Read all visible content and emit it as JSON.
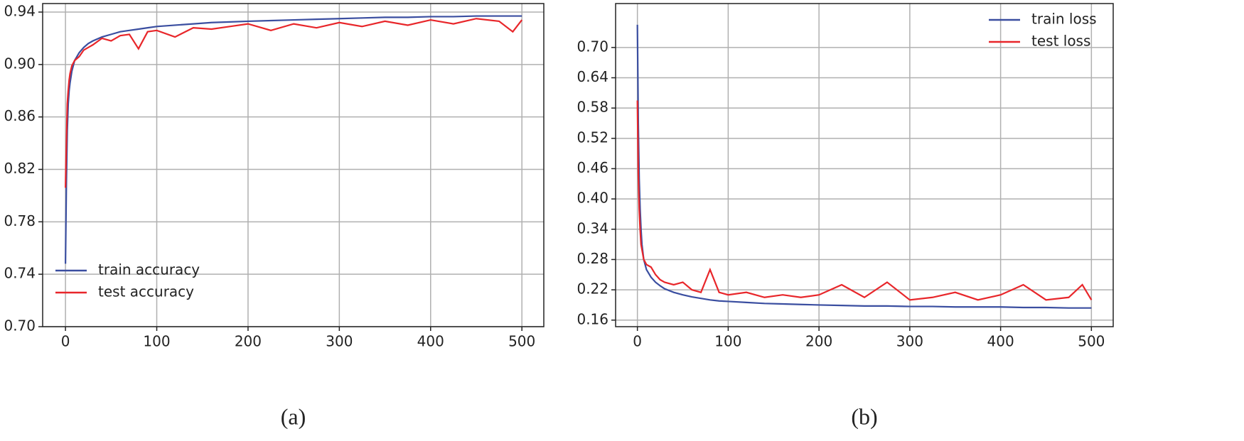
{
  "chart_data": [
    {
      "type": "line",
      "caption": "(a)",
      "x": [
        0,
        1,
        2,
        3,
        4,
        5,
        7,
        10,
        15,
        20,
        25,
        30,
        40,
        50,
        60,
        70,
        80,
        90,
        100,
        120,
        140,
        160,
        180,
        200,
        225,
        250,
        275,
        300,
        325,
        350,
        375,
        400,
        425,
        450,
        475,
        490,
        500
      ],
      "series": [
        {
          "name": "train accuracy",
          "color": "#3a4ea0",
          "values": [
            0.748,
            0.81,
            0.85,
            0.87,
            0.88,
            0.886,
            0.895,
            0.903,
            0.909,
            0.913,
            0.916,
            0.918,
            0.921,
            0.923,
            0.925,
            0.926,
            0.927,
            0.928,
            0.929,
            0.93,
            0.931,
            0.932,
            0.9325,
            0.933,
            0.9335,
            0.934,
            0.9345,
            0.935,
            0.9355,
            0.936,
            0.936,
            0.9365,
            0.9365,
            0.937,
            0.937,
            0.937,
            0.937
          ]
        },
        {
          "name": "test accuracy",
          "color": "#e8262a",
          "values": [
            0.806,
            0.84,
            0.87,
            0.88,
            0.888,
            0.893,
            0.899,
            0.903,
            0.906,
            0.911,
            0.913,
            0.915,
            0.92,
            0.918,
            0.922,
            0.923,
            0.912,
            0.925,
            0.926,
            0.921,
            0.928,
            0.927,
            0.929,
            0.931,
            0.926,
            0.931,
            0.928,
            0.932,
            0.929,
            0.933,
            0.93,
            0.934,
            0.931,
            0.935,
            0.933,
            0.925,
            0.934
          ]
        }
      ],
      "xlim": [
        -25,
        524
      ],
      "ylim": [
        0.7,
        0.9465
      ],
      "xticks": [
        0,
        100,
        200,
        300,
        400,
        500
      ],
      "yticks": [
        {
          "value": 0.7,
          "label": "0.70"
        },
        0.74,
        0.78,
        0.82,
        0.86,
        {
          "value": 0.9,
          "label": "0.90"
        },
        0.94
      ],
      "grid": true,
      "legend": "lower left"
    },
    {
      "type": "line",
      "caption": "(b)",
      "x": [
        0,
        1,
        2,
        3,
        4,
        5,
        7,
        10,
        15,
        20,
        25,
        30,
        40,
        50,
        60,
        70,
        80,
        90,
        100,
        120,
        140,
        160,
        180,
        200,
        225,
        250,
        275,
        300,
        325,
        350,
        375,
        400,
        425,
        450,
        475,
        490,
        500
      ],
      "series": [
        {
          "name": "train loss",
          "color": "#3a4ea0",
          "values": [
            0.745,
            0.55,
            0.44,
            0.38,
            0.34,
            0.31,
            0.28,
            0.26,
            0.245,
            0.235,
            0.228,
            0.222,
            0.215,
            0.21,
            0.206,
            0.203,
            0.2,
            0.198,
            0.197,
            0.195,
            0.193,
            0.192,
            0.191,
            0.19,
            0.189,
            0.188,
            0.188,
            0.187,
            0.187,
            0.186,
            0.186,
            0.186,
            0.185,
            0.185,
            0.184,
            0.184,
            0.184
          ]
        },
        {
          "name": "test loss",
          "color": "#e8262a",
          "values": [
            0.595,
            0.45,
            0.38,
            0.34,
            0.31,
            0.3,
            0.28,
            0.27,
            0.265,
            0.25,
            0.24,
            0.235,
            0.23,
            0.235,
            0.22,
            0.215,
            0.26,
            0.215,
            0.21,
            0.215,
            0.205,
            0.21,
            0.205,
            0.21,
            0.23,
            0.205,
            0.235,
            0.2,
            0.205,
            0.215,
            0.2,
            0.21,
            0.23,
            0.2,
            0.205,
            0.23,
            0.2
          ]
        }
      ],
      "xlim": [
        -24,
        524
      ],
      "ylim": [
        0.147,
        0.787
      ],
      "xticks": [
        0,
        100,
        200,
        300,
        400,
        500
      ],
      "yticks": [
        0.16,
        0.22,
        0.28,
        0.34,
        {
          "value": 0.4,
          "label": "0.40"
        },
        0.46,
        0.52,
        0.58,
        0.64,
        {
          "value": 0.7,
          "label": "0.70"
        }
      ],
      "grid": true,
      "legend": "upper right"
    }
  ]
}
